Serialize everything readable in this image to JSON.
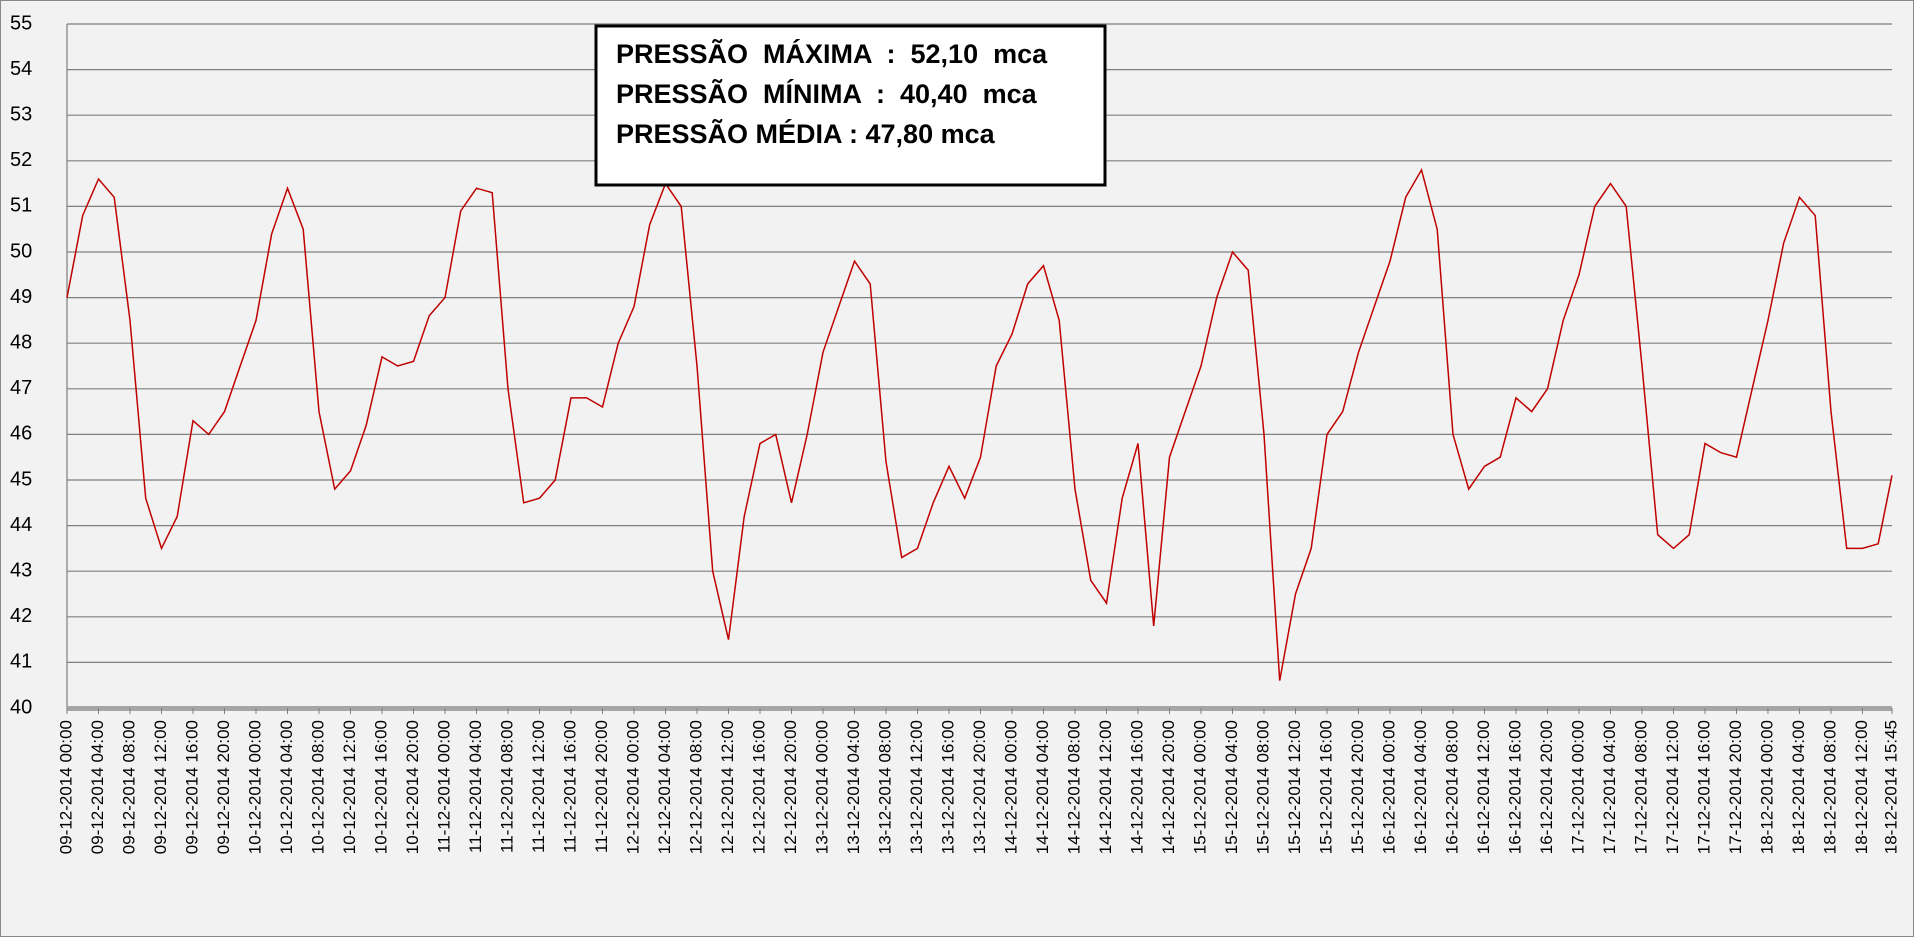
{
  "chart_data": {
    "type": "line",
    "annotations": [
      "PRESSÃO  MÁXIMA  :  52,10  mca",
      "PRESSÃO  MÍNIMA  :  40,40  mca",
      "PRESSÃO MÉDIA : 47,80 mca"
    ],
    "x": [
      "09-12-2014 00:00",
      "09-12-2014 02:00",
      "09-12-2014 04:00",
      "09-12-2014 06:00",
      "09-12-2014 08:00",
      "09-12-2014 10:00",
      "09-12-2014 12:00",
      "09-12-2014 14:00",
      "09-12-2014 16:00",
      "09-12-2014 18:00",
      "09-12-2014 20:00",
      "09-12-2014 22:00",
      "10-12-2014 00:00",
      "10-12-2014 02:00",
      "10-12-2014 04:00",
      "10-12-2014 06:00",
      "10-12-2014 08:00",
      "10-12-2014 10:00",
      "10-12-2014 12:00",
      "10-12-2014 14:00",
      "10-12-2014 16:00",
      "10-12-2014 18:00",
      "10-12-2014 20:00",
      "10-12-2014 22:00",
      "11-12-2014 00:00",
      "11-12-2014 02:00",
      "11-12-2014 04:00",
      "11-12-2014 06:00",
      "11-12-2014 08:00",
      "11-12-2014 10:00",
      "11-12-2014 12:00",
      "11-12-2014 14:00",
      "11-12-2014 16:00",
      "11-12-2014 18:00",
      "11-12-2014 20:00",
      "11-12-2014 22:00",
      "12-12-2014 00:00",
      "12-12-2014 02:00",
      "12-12-2014 04:00",
      "12-12-2014 06:00",
      "12-12-2014 08:00",
      "12-12-2014 10:00",
      "12-12-2014 12:00",
      "12-12-2014 14:00",
      "12-12-2014 16:00",
      "12-12-2014 18:00",
      "12-12-2014 20:00",
      "12-12-2014 22:00",
      "13-12-2014 00:00",
      "13-12-2014 02:00",
      "13-12-2014 04:00",
      "13-12-2014 06:00",
      "13-12-2014 08:00",
      "13-12-2014 10:00",
      "13-12-2014 12:00",
      "13-12-2014 14:00",
      "13-12-2014 16:00",
      "13-12-2014 18:00",
      "13-12-2014 20:00",
      "13-12-2014 22:00",
      "14-12-2014 00:00",
      "14-12-2014 02:00",
      "14-12-2014 04:00",
      "14-12-2014 06:00",
      "14-12-2014 08:00",
      "14-12-2014 10:00",
      "14-12-2014 12:00",
      "14-12-2014 14:00",
      "14-12-2014 16:00",
      "14-12-2014 18:00",
      "14-12-2014 20:00",
      "14-12-2014 22:00",
      "15-12-2014 00:00",
      "15-12-2014 02:00",
      "15-12-2014 04:00",
      "15-12-2014 06:00",
      "15-12-2014 08:00",
      "15-12-2014 10:00",
      "15-12-2014 12:00",
      "15-12-2014 14:00",
      "15-12-2014 16:00",
      "15-12-2014 18:00",
      "15-12-2014 20:00",
      "15-12-2014 22:00",
      "16-12-2014 00:00",
      "16-12-2014 02:00",
      "16-12-2014 04:00",
      "16-12-2014 06:00",
      "16-12-2014 08:00",
      "16-12-2014 10:00",
      "16-12-2014 12:00",
      "16-12-2014 14:00",
      "16-12-2014 16:00",
      "16-12-2014 18:00",
      "16-12-2014 20:00",
      "16-12-2014 22:00",
      "17-12-2014 00:00",
      "17-12-2014 02:00",
      "17-12-2014 04:00",
      "17-12-2014 06:00",
      "17-12-2014 08:00",
      "17-12-2014 10:00",
      "17-12-2014 12:00",
      "17-12-2014 14:00",
      "17-12-2014 16:00",
      "17-12-2014 18:00",
      "17-12-2014 20:00",
      "17-12-2014 22:00",
      "18-12-2014 00:00",
      "18-12-2014 02:00",
      "18-12-2014 04:00",
      "18-12-2014 06:00",
      "18-12-2014 08:00",
      "18-12-2014 10:00",
      "18-12-2014 12:00",
      "18-12-2014 14:00",
      "18-12-2014 15:45"
    ],
    "series": [
      {
        "color": "#c00000",
        "values": [
          49.0,
          50.8,
          51.6,
          51.2,
          48.5,
          44.6,
          43.5,
          44.2,
          46.3,
          46.0,
          46.5,
          47.5,
          48.5,
          50.4,
          51.4,
          50.5,
          46.5,
          44.8,
          45.2,
          46.2,
          47.7,
          47.5,
          47.6,
          48.6,
          49.0,
          50.9,
          51.4,
          51.3,
          47.0,
          44.5,
          44.6,
          45.0,
          46.8,
          46.8,
          46.6,
          48.0,
          48.8,
          50.6,
          51.5,
          51.0,
          47.5,
          43.0,
          41.5,
          44.2,
          45.8,
          46.0,
          44.5,
          46.0,
          47.8,
          48.8,
          49.8,
          49.3,
          45.4,
          43.3,
          43.5,
          44.5,
          45.3,
          44.6,
          45.5,
          47.5,
          48.2,
          49.3,
          49.7,
          48.5,
          44.8,
          42.8,
          42.3,
          44.6,
          45.8,
          41.8,
          45.5,
          46.5,
          47.5,
          49.0,
          50.0,
          49.6,
          46.0,
          40.6,
          42.5,
          43.5,
          46.0,
          46.5,
          47.8,
          48.8,
          49.8,
          51.2,
          51.8,
          50.5,
          46.0,
          44.8,
          45.3,
          45.5,
          46.8,
          46.5,
          47.0,
          48.5,
          49.5,
          51.0,
          51.5,
          51.0,
          47.5,
          43.8,
          43.5,
          43.8,
          45.8,
          45.6,
          45.5,
          47.0,
          48.5,
          50.2,
          51.2,
          50.8,
          46.5,
          43.5,
          43.5,
          43.6,
          45.1
        ]
      }
    ],
    "xlim": [
      "09-12-2014 00:00",
      "18-12-2014 15:45"
    ],
    "xticks": [
      "09-12-2014 00:00",
      "09-12-2014 04:00",
      "09-12-2014 08:00",
      "09-12-2014 12:00",
      "09-12-2014 16:00",
      "09-12-2014 20:00",
      "10-12-2014 00:00",
      "10-12-2014 04:00",
      "10-12-2014 08:00",
      "10-12-2014 12:00",
      "10-12-2014 16:00",
      "10-12-2014 20:00",
      "11-12-2014 00:00",
      "11-12-2014 04:00",
      "11-12-2014 08:00",
      "11-12-2014 12:00",
      "11-12-2014 16:00",
      "11-12-2014 20:00",
      "12-12-2014 00:00",
      "12-12-2014 04:00",
      "12-12-2014 08:00",
      "12-12-2014 12:00",
      "12-12-2014 16:00",
      "12-12-2014 20:00",
      "13-12-2014 00:00",
      "13-12-2014 04:00",
      "13-12-2014 08:00",
      "13-12-2014 12:00",
      "13-12-2014 16:00",
      "13-12-2014 20:00",
      "14-12-2014 00:00",
      "14-12-2014 04:00",
      "14-12-2014 08:00",
      "14-12-2014 12:00",
      "14-12-2014 16:00",
      "14-12-2014 20:00",
      "15-12-2014 00:00",
      "15-12-2014 04:00",
      "15-12-2014 08:00",
      "15-12-2014 12:00",
      "15-12-2014 16:00",
      "15-12-2014 20:00",
      "16-12-2014 00:00",
      "16-12-2014 04:00",
      "16-12-2014 08:00",
      "16-12-2014 12:00",
      "16-12-2014 16:00",
      "16-12-2014 20:00",
      "17-12-2014 00:00",
      "17-12-2014 04:00",
      "17-12-2014 08:00",
      "17-12-2014 12:00",
      "17-12-2014 16:00",
      "17-12-2014 20:00",
      "18-12-2014 00:00",
      "18-12-2014 04:00",
      "18-12-2014 08:00",
      "18-12-2014 12:00",
      "18-12-2014 15:45"
    ],
    "ylim": [
      40,
      55
    ],
    "yticks": [
      40,
      41,
      42,
      43,
      44,
      45,
      46,
      47,
      48,
      49,
      50,
      51,
      52,
      53,
      54,
      55
    ],
    "grid": true
  }
}
